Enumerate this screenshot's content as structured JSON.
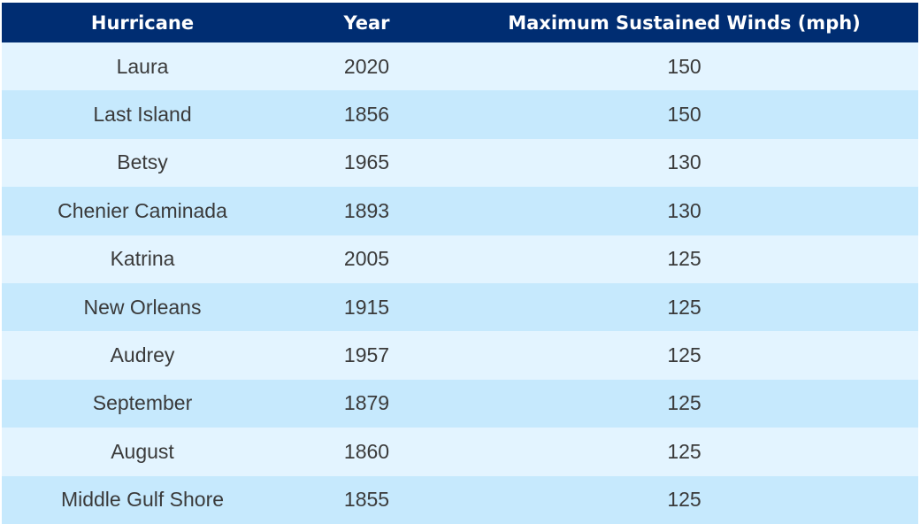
{
  "chart_data": {
    "type": "table",
    "columns": [
      "Hurricane",
      "Year",
      "Maximum Sustained Winds (mph)"
    ],
    "rows": [
      [
        "Laura",
        "2020",
        "150"
      ],
      [
        "Last Island",
        "1856",
        "150"
      ],
      [
        "Betsy",
        "1965",
        "130"
      ],
      [
        "Chenier Caminada",
        "1893",
        "130"
      ],
      [
        "Katrina",
        "2005",
        "125"
      ],
      [
        "New Orleans",
        "1915",
        "125"
      ],
      [
        "Audrey",
        "1957",
        "125"
      ],
      [
        "September",
        "1879",
        "125"
      ],
      [
        "August",
        "1860",
        "125"
      ],
      [
        "Middle Gulf Shore",
        "1855",
        "125"
      ]
    ]
  },
  "colors": {
    "header_bg": "#002d72",
    "header_text": "#ffffff",
    "row_light": "#e3f4ff",
    "row_dark": "#c6e9fd",
    "cell_text": "#3a3a3a"
  }
}
